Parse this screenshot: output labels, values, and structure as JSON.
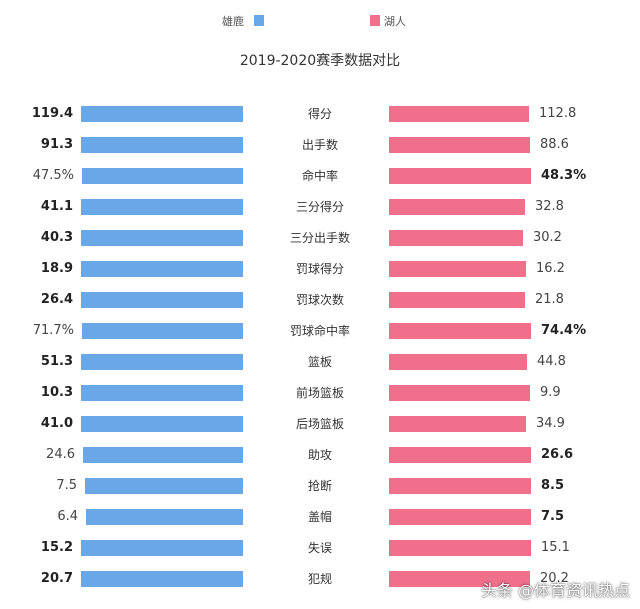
{
  "legend": {
    "bucks": {
      "label": "雄鹿",
      "color": "#6aa7e6"
    },
    "lakers": {
      "label": "湖人",
      "color": "#f0708b"
    }
  },
  "watermark": "头条 @体育资讯热点",
  "chart_data": {
    "type": "bar",
    "title": "2019-2020赛季数据对比",
    "categories": [
      "得分",
      "出手数",
      "命中率",
      "三分得分",
      "三分出手数",
      "罚球得分",
      "罚球次数",
      "罚球命中率",
      "篮板",
      "前场篮板",
      "后场篮板",
      "助攻",
      "抢断",
      "盖帽",
      "失误",
      "犯规"
    ],
    "series": [
      {
        "name": "雄鹿",
        "color": "#6aa7e6",
        "labels": [
          "119.4",
          "91.3",
          "47.5%",
          "41.1",
          "40.3",
          "18.9",
          "26.4",
          "71.7%",
          "51.3",
          "10.3",
          "41.0",
          "24.6",
          "7.5",
          "6.4",
          "15.2",
          "20.7"
        ],
        "bold": [
          true,
          true,
          false,
          true,
          true,
          true,
          true,
          false,
          true,
          true,
          true,
          false,
          false,
          false,
          true,
          true
        ],
        "values": [
          119.4,
          91.3,
          47.5,
          41.1,
          40.3,
          18.9,
          26.4,
          71.7,
          51.3,
          10.3,
          41.0,
          24.6,
          7.5,
          6.4,
          15.2,
          20.7
        ]
      },
      {
        "name": "湖人",
        "color": "#f0708b",
        "labels": [
          "112.8",
          "88.6",
          "48.3%",
          "32.8",
          "30.2",
          "16.2",
          "21.8",
          "74.4%",
          "44.8",
          "9.9",
          "34.9",
          "26.6",
          "8.5",
          "7.5",
          "15.1",
          "20.2"
        ],
        "bold": [
          false,
          false,
          true,
          false,
          false,
          false,
          false,
          true,
          false,
          false,
          false,
          true,
          true,
          true,
          false,
          false
        ],
        "values": [
          112.8,
          88.6,
          48.3,
          32.8,
          30.2,
          16.2,
          21.8,
          74.4,
          44.8,
          9.9,
          34.9,
          26.6,
          8.5,
          7.5,
          15.1,
          20.2
        ]
      }
    ],
    "grid": false,
    "legend_position": "top"
  }
}
